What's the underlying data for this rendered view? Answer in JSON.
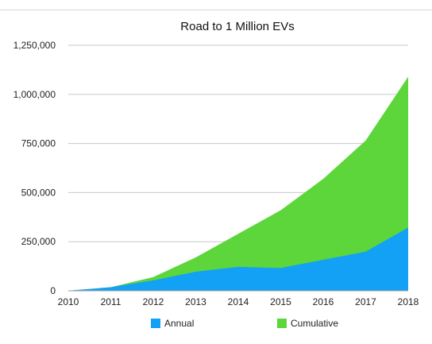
{
  "chart_data": {
    "type": "area",
    "title": "Road to 1 Million EVs",
    "xlabel": "",
    "ylabel": "",
    "x": [
      2010,
      2011,
      2012,
      2013,
      2014,
      2015,
      2016,
      2017,
      2018
    ],
    "x_tick_labels": [
      "2010",
      "2011",
      "2012",
      "2013",
      "2014",
      "2015",
      "2016",
      "2017",
      "2018"
    ],
    "ylim": [
      0,
      1250000
    ],
    "y_ticks": [
      0,
      250000,
      500000,
      750000,
      1000000,
      1250000
    ],
    "y_tick_labels": [
      "0",
      "250,000",
      "500,000",
      "750,000",
      "1,000,000",
      "1,250,000"
    ],
    "stacked": false,
    "grid": true,
    "legend_position": "bottom",
    "series": [
      {
        "name": "Cumulative",
        "color": "#5dd63b",
        "values": [
          500,
          18000,
          70000,
          170000,
          290000,
          410000,
          570000,
          765000,
          1090000
        ]
      },
      {
        "name": "Annual",
        "color": "#12a1f5",
        "values": [
          500,
          18000,
          53000,
          97000,
          122000,
          116000,
          158000,
          199000,
          322000
        ]
      }
    ],
    "legend": [
      {
        "label": "Annual",
        "color": "#12a1f5"
      },
      {
        "label": "Cumulative",
        "color": "#5dd63b"
      }
    ]
  }
}
